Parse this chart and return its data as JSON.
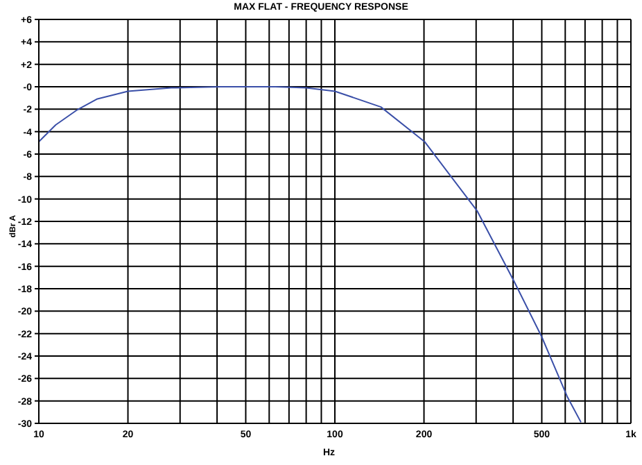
{
  "chart_data": {
    "type": "line",
    "title": "MAX FLAT  -  FREQUENCY RESPONSE",
    "xlabel": "Hz",
    "ylabel": "dBr A",
    "log": "x",
    "x": [
      10,
      11.4,
      13.4,
      15.7,
      20,
      28,
      41,
      63,
      80,
      100,
      143,
      201,
      303,
      404,
      500,
      609,
      678
    ],
    "series": [
      {
        "color": "#3a4fa8",
        "values": [
          -4.9,
          -3.4,
          -2.1,
          -1.1,
          -0.4,
          -0.1,
          0,
          0,
          -0.1,
          -0.4,
          -1.8,
          -4.9,
          -11.1,
          -17.4,
          -22.3,
          -27.6,
          -29.9
        ]
      }
    ],
    "xlim": [
      10,
      1000
    ],
    "xticks": [
      10,
      20,
      {
        "value": 30,
        "label": null
      },
      {
        "value": 40,
        "label": null
      },
      50,
      {
        "value": 60,
        "label": null
      },
      {
        "value": 70,
        "label": null
      },
      {
        "value": 80,
        "label": null
      },
      {
        "value": 90,
        "label": null
      },
      100,
      200,
      {
        "value": 300,
        "label": null
      },
      {
        "value": 400,
        "label": null
      },
      500,
      {
        "value": 600,
        "label": null
      },
      {
        "value": 700,
        "label": null
      },
      {
        "value": 800,
        "label": null
      },
      {
        "value": 900,
        "label": null
      },
      {
        "value": 1000,
        "label": "1k"
      }
    ],
    "ylim": [
      -30,
      6
    ],
    "yticks": [
      {
        "value": 6,
        "label": "+6"
      },
      {
        "value": 4,
        "label": "+4"
      },
      {
        "value": 2,
        "label": "+2"
      },
      {
        "value": 0,
        "label": "-0"
      },
      -2,
      -4,
      -6,
      -8,
      -10,
      -12,
      -14,
      -16,
      -18,
      -20,
      -22,
      -24,
      -26,
      -28,
      -30
    ],
    "grid": true,
    "marker": "none",
    "line_style": "solid"
  }
}
